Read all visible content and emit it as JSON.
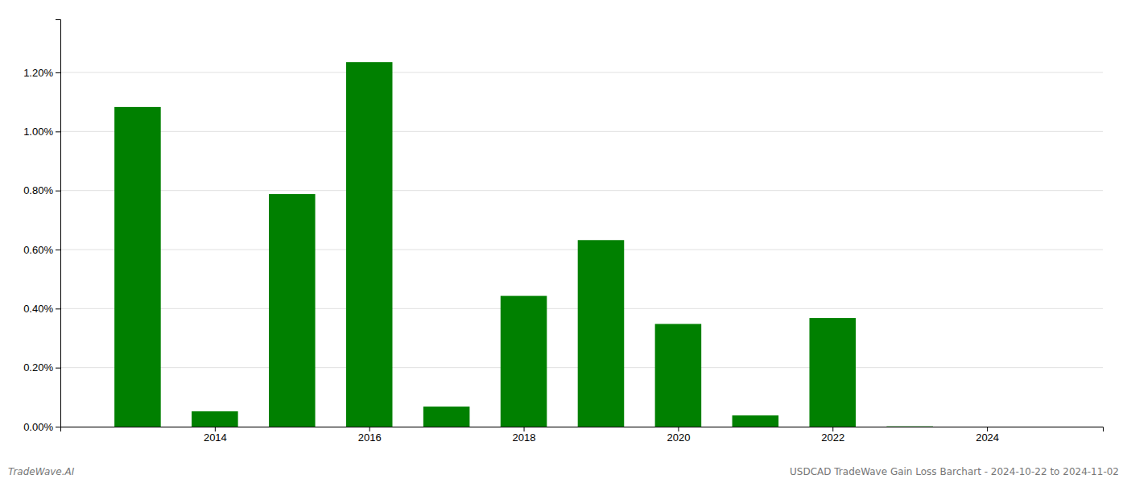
{
  "chart_data": {
    "type": "bar",
    "x": [
      2013,
      2014,
      2015,
      2016,
      2017,
      2018,
      2019,
      2020,
      2021,
      2022,
      2023
    ],
    "values": [
      0.01083,
      0.00052,
      0.00788,
      0.01235,
      0.00068,
      0.00443,
      0.00632,
      0.00348,
      0.00038,
      0.00368,
      1e-05
    ],
    "color": "#008000",
    "xlim": [
      2012.0,
      2025.5
    ],
    "xticks": [
      2014,
      2016,
      2018,
      2020,
      2022,
      2024
    ],
    "ylim": [
      0,
      0.0138
    ],
    "yticks": [
      {
        "value": 0,
        "label": "0.00%"
      },
      {
        "value": 0.002,
        "label": "0.20%"
      },
      {
        "value": 0.004,
        "label": "0.40%"
      },
      {
        "value": 0.006,
        "label": "0.60%"
      },
      {
        "value": 0.008,
        "label": "0.80%"
      },
      {
        "value": 0.01,
        "label": "1.00%"
      },
      {
        "value": 0.012,
        "label": "1.20%"
      }
    ],
    "grid": true,
    "annotations": [
      "TradeWave.AI",
      "USDCAD TradeWave Gain Loss Barchart - 2024-10-22 to 2024-11-02"
    ]
  }
}
